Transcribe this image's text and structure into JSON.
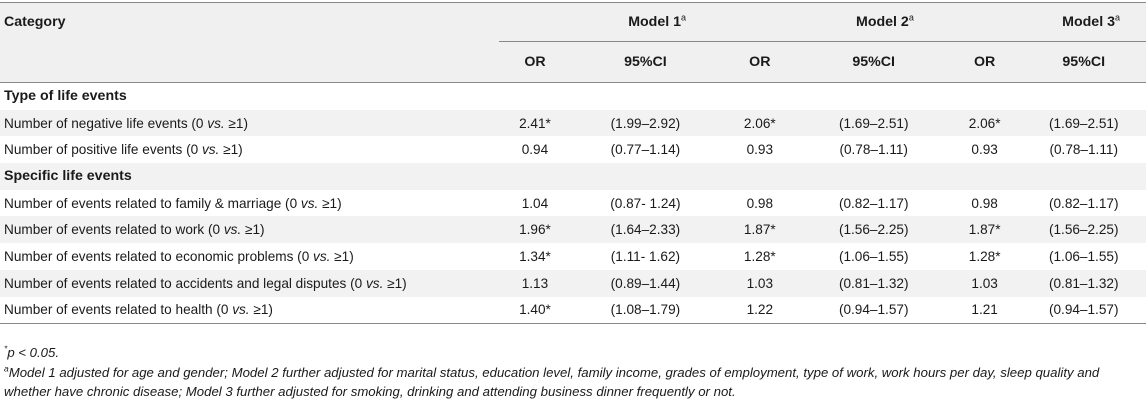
{
  "header": {
    "category": "Category",
    "models": [
      {
        "label": "Model 1",
        "sup": "a"
      },
      {
        "label": "Model 2",
        "sup": "a"
      },
      {
        "label": "Model 3",
        "sup": "a"
      }
    ],
    "or_label": "OR",
    "ci_label": "95%CI"
  },
  "sections": [
    {
      "title": "Type of life events",
      "rows": [
        {
          "pre": "Number of negative life events (0 ",
          "vs": "vs.",
          "post": " ≥1)",
          "m1_or": "2.41*",
          "m1_ci": "(1.99–2.92)",
          "m2_or": "2.06*",
          "m2_ci": "(1.69–2.51)",
          "m3_or": "2.06*",
          "m3_ci": "(1.69–2.51)"
        },
        {
          "pre": "Number of positive life events (0 ",
          "vs": "vs.",
          "post": " ≥1)",
          "m1_or": "0.94",
          "m1_ci": "(0.77–1.14)",
          "m2_or": "0.93",
          "m2_ci": "(0.78–1.11)",
          "m3_or": "0.93",
          "m3_ci": "(0.78–1.11)"
        }
      ]
    },
    {
      "title": "Specific life events",
      "rows": [
        {
          "pre": "Number of events related to family & marriage (0 ",
          "vs": "vs.",
          "post": " ≥1)",
          "m1_or": "1.04",
          "m1_ci": "(0.87- 1.24)",
          "m2_or": "0.98",
          "m2_ci": "(0.82–1.17)",
          "m3_or": "0.98",
          "m3_ci": "(0.82–1.17)"
        },
        {
          "pre": "Number of events related to work (0 ",
          "vs": "vs.",
          "post": " ≥1)",
          "m1_or": "1.96*",
          "m1_ci": "(1.64–2.33)",
          "m2_or": "1.87*",
          "m2_ci": "(1.56–2.25)",
          "m3_or": "1.87*",
          "m3_ci": "(1.56–2.25)"
        },
        {
          "pre": "Number of events related to economic problems (0 ",
          "vs": "vs.",
          "post": " ≥1)",
          "m1_or": "1.34*",
          "m1_ci": "(1.11- 1.62)",
          "m2_or": "1.28*",
          "m2_ci": "(1.06–1.55)",
          "m3_or": "1.28*",
          "m3_ci": "(1.06–1.55)"
        },
        {
          "pre": "Number of events related to accidents and legal disputes (0 ",
          "vs": "vs.",
          "post": " ≥1)",
          "m1_or": "1.13",
          "m1_ci": "(0.89–1.44)",
          "m2_or": "1.03",
          "m2_ci": "(0.81–1.32)",
          "m3_or": "1.03",
          "m3_ci": "(0.81–1.32)"
        },
        {
          "pre": "Number of events related to health (0 ",
          "vs": "vs.",
          "post": " ≥1)",
          "m1_or": "1.40*",
          "m1_ci": "(1.08–1.79)",
          "m2_or": "1.22",
          "m2_ci": "(0.94–1.57)",
          "m3_or": "1.21",
          "m3_ci": "(0.94–1.57)"
        }
      ]
    }
  ],
  "footnotes": {
    "sig_sup": "*",
    "sig_text": "p < 0.05.",
    "a_sup": "a",
    "a_text": "Model 1 adjusted for age and gender; Model 2 further adjusted for marital status, education level, family income, grades of employment, type of work, work hours per day, sleep quality and whether have chronic disease; Model 3 further adjusted for smoking, drinking and attending business dinner frequently or not."
  }
}
